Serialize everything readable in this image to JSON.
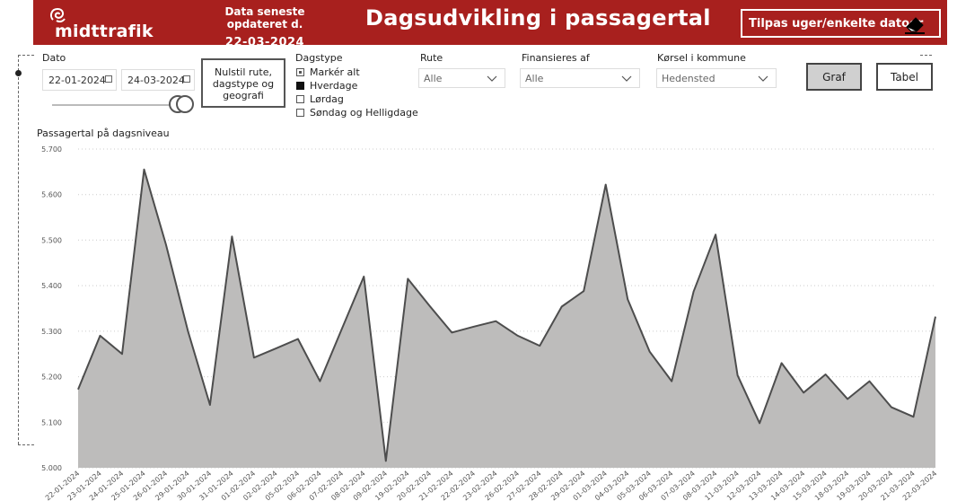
{
  "header": {
    "logo_text": "midttrafik",
    "update_label": "Data seneste opdateret d.",
    "update_date": "22-03-2024",
    "title": "Dagsudvikling i passagertal",
    "customize_label": "Tilpas uger/enkelte datoer"
  },
  "filters": {
    "date_label": "Dato",
    "date_from": "22-01-2024",
    "date_to": "24-03-2024",
    "reset_label_1": "Nulstil rute,",
    "reset_label_2": "dagstype og",
    "reset_label_3": "geografi",
    "daytype_label": "Dagstype",
    "daytype_options": [
      {
        "label": "Markér alt",
        "state": "partial"
      },
      {
        "label": "Hverdage",
        "state": "checked"
      },
      {
        "label": "Lørdag",
        "state": "unchecked"
      },
      {
        "label": "Søndag og Helligdage",
        "state": "unchecked"
      }
    ],
    "route_label": "Rute",
    "route_value": "Alle",
    "financed_label": "Finansieres af",
    "financed_value": "Alle",
    "municipality_label": "Kørsel i kommune",
    "municipality_value": "Hedensted"
  },
  "view_buttons": {
    "graph": "Graf",
    "table": "Tabel"
  },
  "chart_data": {
    "type": "area",
    "title": "Passagertal på dagsniveau",
    "ylim": [
      5000,
      5700
    ],
    "yticks": [
      "5.000",
      "5.100",
      "5.200",
      "5.300",
      "5.400",
      "5.500",
      "5.600",
      "5.700"
    ],
    "fill_color": "#bdbcbb",
    "line_color": "#4d4d4d",
    "x": [
      "22-01-2024",
      "23-01-2024",
      "24-01-2024",
      "25-01-2024",
      "26-01-2024",
      "29-01-2024",
      "30-01-2024",
      "31-01-2024",
      "01-02-2024",
      "02-02-2024",
      "05-02-2024",
      "06-02-2024",
      "07-02-2024",
      "08-02-2024",
      "09-02-2024",
      "19-02-2024",
      "20-02-2024",
      "21-02-2024",
      "22-02-2024",
      "23-02-2024",
      "26-02-2024",
      "27-02-2024",
      "28-02-2024",
      "29-02-2024",
      "01-03-2024",
      "04-03-2024",
      "05-03-2024",
      "06-03-2024",
      "07-03-2024",
      "08-03-2024",
      "11-03-2024",
      "12-03-2024",
      "13-03-2024",
      "14-03-2024",
      "15-03-2024",
      "18-03-2024",
      "19-03-2024",
      "20-03-2024",
      "21-03-2024",
      "22-03-2024"
    ],
    "values": [
      5172,
      5290,
      5250,
      5655,
      5490,
      5300,
      5138,
      5508,
      5242,
      5262,
      5283,
      5190,
      5305,
      5420,
      5015,
      5415,
      5355,
      5297,
      5310,
      5322,
      5290,
      5268,
      5354,
      5388,
      5622,
      5370,
      5255,
      5190,
      5387,
      5512,
      5203,
      5098,
      5230,
      5165,
      5205,
      5151,
      5190,
      5133,
      5112,
      5332
    ]
  }
}
